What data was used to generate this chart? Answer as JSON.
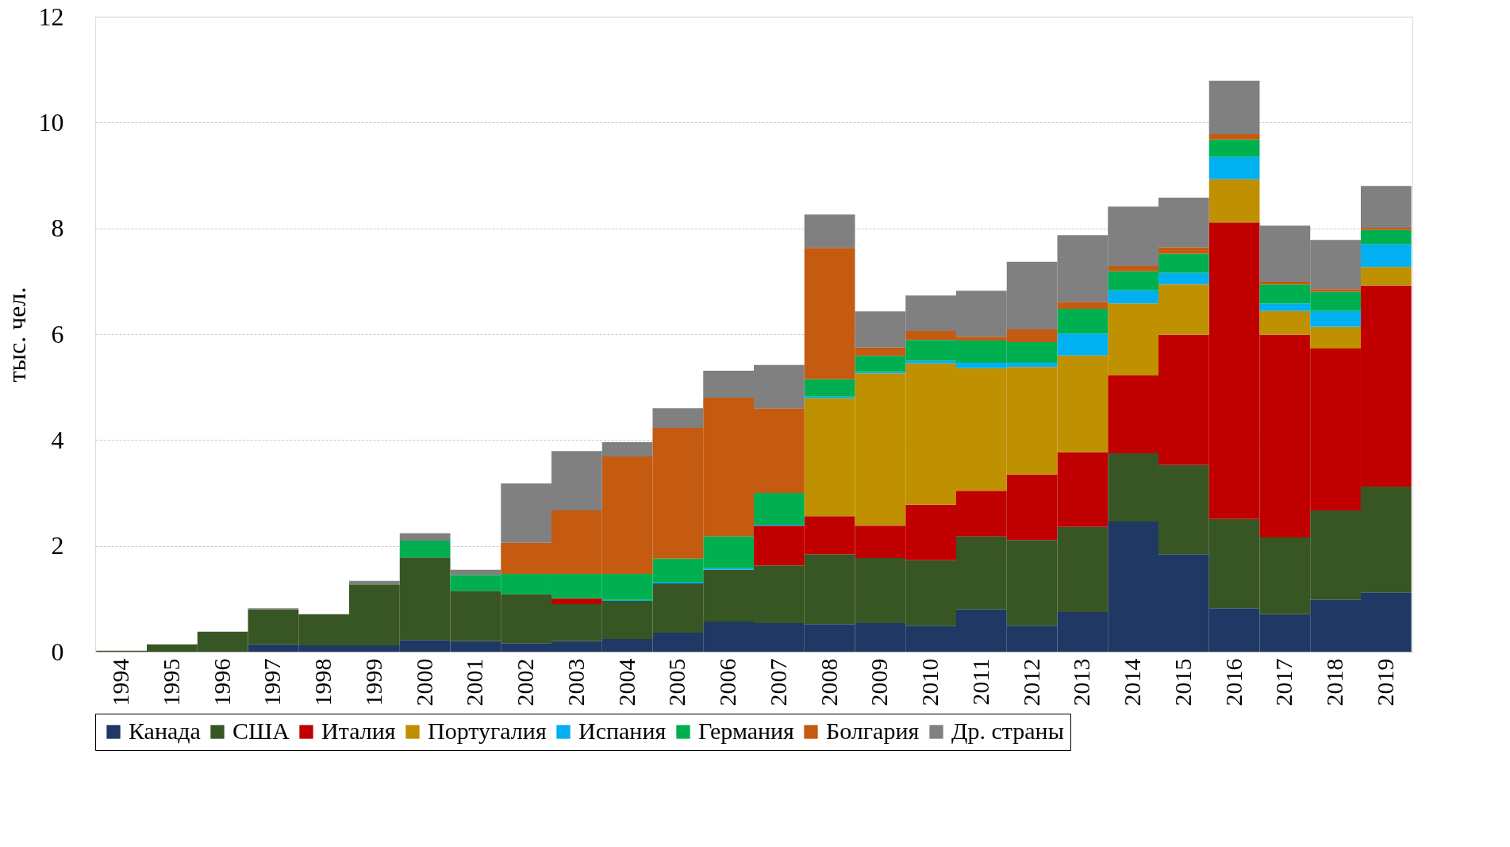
{
  "chart_data": {
    "type": "bar",
    "stacked": true,
    "ylabel": "тыс. чел.",
    "ylim": [
      0,
      12
    ],
    "yticks": [
      0,
      2,
      4,
      6,
      8,
      10,
      12
    ],
    "grid": "y",
    "legend": "bottom",
    "categories": [
      "1994",
      "1995",
      "1996",
      "1997",
      "1998",
      "1999",
      "2000",
      "2001",
      "2002",
      "2003",
      "2004",
      "2005",
      "2006",
      "2007",
      "2008",
      "2009",
      "2010",
      "2011",
      "2012",
      "2013",
      "2014",
      "2015",
      "2016",
      "2017",
      "2018",
      "2019"
    ],
    "series": [
      {
        "name": "Канада",
        "color": "#1f3864",
        "values": [
          0,
          0,
          0,
          0.14,
          0.12,
          0.12,
          0.22,
          0.2,
          0.16,
          0.2,
          0.24,
          0.36,
          0.57,
          0.54,
          0.52,
          0.54,
          0.49,
          0.8,
          0.49,
          0.75,
          2.46,
          1.84,
          0.82,
          0.71,
          0.98,
          1.12
        ]
      },
      {
        "name": "США",
        "color": "#375623",
        "values": [
          0.02,
          0.14,
          0.38,
          0.66,
          0.59,
          1.15,
          1.56,
          0.95,
          0.93,
          0.7,
          0.72,
          0.93,
          0.98,
          1.09,
          1.32,
          1.23,
          1.24,
          1.38,
          1.62,
          1.61,
          1.29,
          1.69,
          1.69,
          1.45,
          1.69,
          2.0
        ]
      },
      {
        "name": "Италия",
        "color": "#c00000",
        "values": [
          0,
          0,
          0,
          0,
          0,
          0,
          0,
          0,
          0,
          0.11,
          0,
          0,
          0,
          0.75,
          0.72,
          0.61,
          1.05,
          0.86,
          1.24,
          1.41,
          1.47,
          2.46,
          5.6,
          3.83,
          3.06,
          3.8
        ]
      },
      {
        "name": "Португалия",
        "color": "#bf9000",
        "values": [
          0,
          0,
          0,
          0,
          0,
          0,
          0,
          0,
          0,
          0,
          0,
          0,
          0,
          0,
          2.23,
          2.88,
          2.67,
          2.32,
          2.03,
          1.83,
          1.36,
          0.95,
          0.82,
          0.45,
          0.41,
          0.35
        ]
      },
      {
        "name": "Испания",
        "color": "#00b0f0",
        "values": [
          0,
          0,
          0,
          0,
          0,
          0,
          0,
          0,
          0,
          0,
          0.02,
          0.03,
          0.03,
          0.02,
          0.03,
          0.03,
          0.05,
          0.1,
          0.08,
          0.41,
          0.25,
          0.22,
          0.42,
          0.14,
          0.3,
          0.43
        ]
      },
      {
        "name": "Германия",
        "color": "#00b050",
        "values": [
          0,
          0,
          0,
          0,
          0,
          0,
          0.32,
          0.3,
          0.38,
          0.46,
          0.49,
          0.44,
          0.6,
          0.6,
          0.33,
          0.3,
          0.39,
          0.42,
          0.39,
          0.47,
          0.36,
          0.36,
          0.33,
          0.36,
          0.36,
          0.27
        ]
      },
      {
        "name": "Болгария",
        "color": "#c55a11",
        "values": [
          0,
          0,
          0,
          0,
          0,
          0,
          0,
          0,
          0.59,
          1.2,
          2.22,
          2.47,
          2.62,
          1.6,
          2.48,
          0.16,
          0.17,
          0.07,
          0.24,
          0.13,
          0.1,
          0.12,
          0.1,
          0.05,
          0.05,
          0.04
        ]
      },
      {
        "name": "Др. страны",
        "color": "#808080",
        "values": [
          0,
          0,
          0,
          0.02,
          0,
          0.07,
          0.14,
          0.1,
          1.12,
          1.12,
          0.27,
          0.37,
          0.51,
          0.82,
          0.63,
          0.68,
          0.67,
          0.87,
          1.28,
          1.26,
          1.12,
          0.94,
          1.01,
          1.06,
          0.93,
          0.79
        ]
      }
    ]
  }
}
